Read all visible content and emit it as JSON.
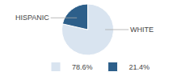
{
  "chart_data": {
    "type": "pie",
    "categories": [
      "78.6%",
      "21.4%"
    ],
    "values": [
      78.6,
      21.4
    ],
    "colors": [
      "#d9e4f0",
      "#2d5f8a"
    ],
    "annotations": [
      "WHITE",
      "HISPANIC"
    ],
    "legend": "bottom"
  }
}
